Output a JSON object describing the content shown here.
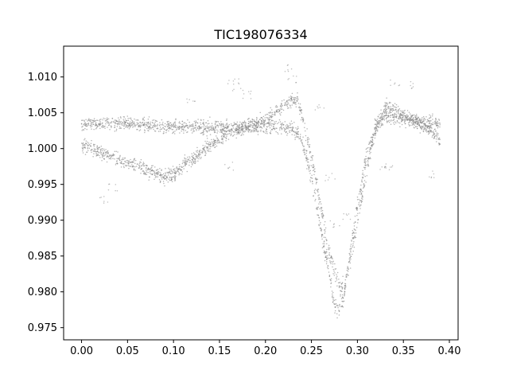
{
  "chart_data": {
    "type": "scatter",
    "title": "TIC198076334",
    "xlabel": "",
    "ylabel": "",
    "xlim": [
      -0.0195,
      0.4095
    ],
    "ylim": [
      0.9733,
      1.0143
    ],
    "xticks": [
      0.0,
      0.05,
      0.1,
      0.15,
      0.2,
      0.25,
      0.3,
      0.35,
      0.4
    ],
    "xtick_labels": [
      "0.00",
      "0.05",
      "0.10",
      "0.15",
      "0.20",
      "0.25",
      "0.30",
      "0.35",
      "0.40"
    ],
    "yticks": [
      0.975,
      0.98,
      0.985,
      0.99,
      0.995,
      1.0,
      1.005,
      1.01
    ],
    "ytick_labels": [
      "0.975",
      "0.980",
      "0.985",
      "0.990",
      "0.995",
      "1.000",
      "1.005",
      "1.010"
    ],
    "grid": false,
    "marker_color": "#808080",
    "series": [
      {
        "x": [
          0.0,
          0.02,
          0.04,
          0.06,
          0.08,
          0.09,
          0.1,
          0.12,
          0.14,
          0.16,
          0.18,
          0.2,
          0.21,
          0.22,
          0.23,
          0.235,
          0.24,
          0.25,
          0.26,
          0.27,
          0.28,
          0.285,
          0.29,
          0.3,
          0.31,
          0.32,
          0.33,
          0.34,
          0.36,
          0.38,
          0.39
        ],
        "y": [
          1.0005,
          0.9995,
          0.9985,
          0.9975,
          0.9965,
          0.996,
          0.9965,
          0.9985,
          1.0005,
          1.002,
          1.003,
          1.004,
          1.005,
          1.006,
          1.0068,
          1.0068,
          1.0045,
          0.999,
          0.992,
          0.985,
          0.981,
          0.9805,
          0.983,
          0.99,
          0.997,
          1.003,
          1.006,
          1.0055,
          1.004,
          1.0025,
          1.001
        ]
      },
      {
        "x": [
          0.0,
          0.05,
          0.1,
          0.15,
          0.2,
          0.22,
          0.23,
          0.235,
          0.24,
          0.25,
          0.26,
          0.27,
          0.275,
          0.28,
          0.285,
          0.29,
          0.3,
          0.31,
          0.32,
          0.33,
          0.34,
          0.36,
          0.38,
          0.39
        ],
        "y": [
          1.0035,
          1.0035,
          1.003,
          1.003,
          1.003,
          1.003,
          1.0028,
          1.0022,
          1.001,
          0.996,
          0.989,
          0.982,
          0.978,
          0.9775,
          0.979,
          0.984,
          0.992,
          0.999,
          1.003,
          1.0045,
          1.0042,
          1.004,
          1.0038,
          1.0035
        ]
      }
    ],
    "scatter_strays": [
      [
        0.165,
        1.0095
      ],
      [
        0.17,
        1.0085
      ],
      [
        0.18,
        1.0075
      ],
      [
        0.225,
        1.0112
      ],
      [
        0.228,
        1.0098
      ],
      [
        0.26,
        1.006
      ],
      [
        0.275,
        0.9895
      ],
      [
        0.29,
        0.9905
      ],
      [
        0.27,
        0.996
      ],
      [
        0.34,
        1.0093
      ],
      [
        0.36,
        1.0088
      ],
      [
        0.035,
        0.9945
      ],
      [
        0.025,
        0.9928
      ],
      [
        0.16,
        0.9975
      ],
      [
        0.33,
        0.997
      ],
      [
        0.335,
        0.9975
      ],
      [
        0.38,
        0.9965
      ],
      [
        0.12,
        1.0065
      ]
    ]
  }
}
